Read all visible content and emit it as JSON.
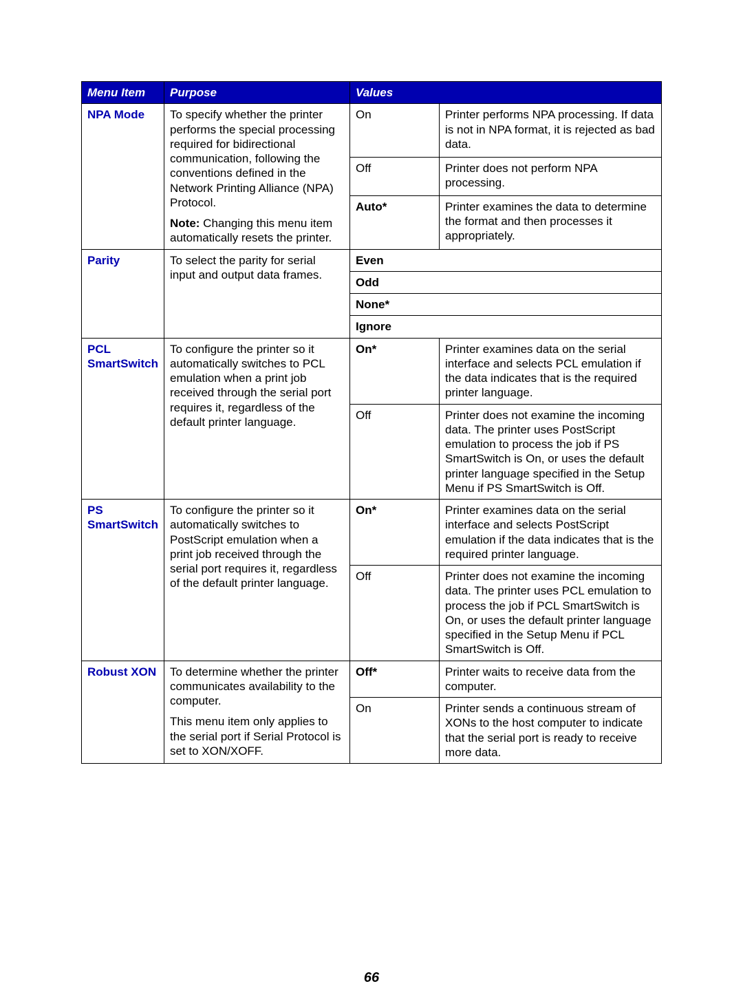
{
  "header": {
    "menuItem": "Menu Item",
    "purpose": "Purpose",
    "values": "Values"
  },
  "npa": {
    "name": "NPA Mode",
    "purpose1": "To specify whether the printer performs the special processing required for bidirectional communication, following the conventions defined in the Network Printing Alliance (NPA) Protocol.",
    "noteLabel": "Note:",
    "purposeNote": " Changing this menu item automatically resets the printer.",
    "v1": "On",
    "d1": "Printer performs NPA processing. If data is not in NPA format, it is rejected as bad data.",
    "v2": "Off",
    "d2": "Printer does not perform NPA processing.",
    "v3": "Auto*",
    "d3": "Printer examines the data to determine the format and then processes it appropriately."
  },
  "parity": {
    "name": "Parity",
    "purpose": "To select the parity for serial input and output data frames.",
    "v1": "Even",
    "v2": "Odd",
    "v3": "None*",
    "v4": "Ignore"
  },
  "pcl": {
    "name": "PCL SmartSwitch",
    "purpose": "To configure the printer so it automatically switches to PCL emulation when a print job received through the serial port requires it, regardless of the default printer language.",
    "v1": "On*",
    "d1": "Printer examines data on the serial interface and selects PCL emulation if the data indicates that is the required printer language.",
    "v2": "Off",
    "d2": "Printer does not examine the incoming data. The printer uses PostScript emulation to process the job if PS SmartSwitch is On, or uses the default printer language specified in the Setup Menu if PS SmartSwitch is Off."
  },
  "ps": {
    "name": "PS SmartSwitch",
    "purpose": "To configure the printer so it automatically switches to PostScript emulation when a print job received through the serial port requires it, regardless of the default printer language.",
    "v1": "On*",
    "d1": "Printer examines data on the serial interface and selects PostScript emulation if the data indicates that is the required printer language.",
    "v2": "Off",
    "d2": "Printer does not examine the incoming data. The printer uses PCL emulation to process the job if PCL SmartSwitch is On, or uses the default printer language specified in the Setup Menu if PCL SmartSwitch is Off."
  },
  "robust": {
    "name": "Robust XON",
    "purpose1": "To determine whether the printer communicates availability to the computer.",
    "purpose2": "This menu item only applies to the serial port if Serial Protocol is set to XON/XOFF.",
    "v1": "Off*",
    "d1": "Printer waits to receive data from the computer.",
    "v2": "On",
    "d2": "Printer sends a continuous stream of XONs to the host computer to indicate that the serial port is ready to receive more data."
  },
  "pageNumber": "66"
}
